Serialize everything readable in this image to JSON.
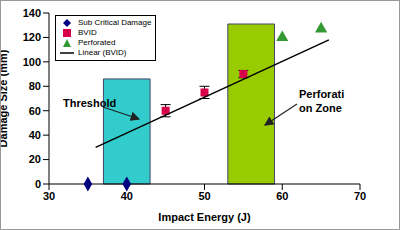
{
  "chart_data": {
    "type": "scatter",
    "xlabel": "Impact Energy (J)",
    "ylabel": "Damage Size (mm)",
    "xlim": [
      30,
      70
    ],
    "xticks": [
      30,
      40,
      50,
      60,
      70
    ],
    "ylim": [
      0,
      140
    ],
    "yticks": [
      0,
      20,
      40,
      60,
      80,
      100,
      120,
      140
    ],
    "grid": false,
    "legend": "upper left",
    "series": [
      {
        "name": "Sub Critical Damage",
        "type": "scatter",
        "color": "#000080",
        "marker": "diamond",
        "x": [
          35,
          40
        ],
        "values": [
          0,
          0
        ]
      },
      {
        "name": "BVID",
        "type": "scatter",
        "color": "#d6004b",
        "marker": "square",
        "x": [
          45,
          50,
          55
        ],
        "values": [
          60,
          75,
          90
        ],
        "error": [
          5,
          5,
          3
        ]
      },
      {
        "name": "Perforated",
        "type": "scatter",
        "color": "#339933",
        "marker": "triangle",
        "x": [
          60,
          65
        ],
        "values": [
          120,
          127
        ]
      },
      {
        "name": "Linear (BVID)",
        "type": "line",
        "color": "#000000",
        "x": [
          36,
          66
        ],
        "values": [
          30,
          118
        ]
      }
    ],
    "regions": [
      {
        "label": [
          "Threshold"
        ],
        "x": [
          37,
          43
        ],
        "y": [
          0,
          86
        ],
        "color": "#33cccc"
      },
      {
        "label": [
          "Perforati",
          "on Zone"
        ],
        "x": [
          53,
          59
        ],
        "y": [
          0,
          131
        ],
        "color": "#99cc00"
      }
    ]
  }
}
